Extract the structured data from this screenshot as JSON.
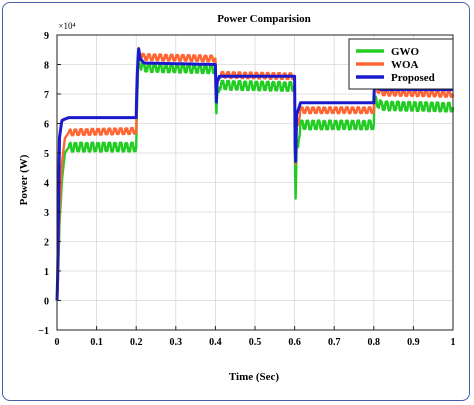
{
  "chart_data": {
    "type": "line",
    "title": "Power Comparision",
    "xlabel": "Time (Sec)",
    "ylabel": "Power (W)",
    "y_multiplier_label": "×10⁴",
    "xlim": [
      0,
      1
    ],
    "ylim": [
      -1,
      9
    ],
    "xticks": [
      0,
      0.1,
      0.2,
      0.3,
      0.4,
      0.5,
      0.6,
      0.7,
      0.8,
      0.9,
      1
    ],
    "xtick_labels": [
      "0",
      "0.1",
      "0.2",
      "0.3",
      "0.4",
      "0.5",
      "0.6",
      "0.7",
      "0.8",
      "0.9",
      "1"
    ],
    "yticks": [
      -1,
      0,
      1,
      2,
      3,
      4,
      5,
      6,
      7,
      8,
      9
    ],
    "ytick_labels": [
      "−1",
      "0",
      "1",
      "2",
      "3",
      "4",
      "5",
      "6",
      "7",
      "8",
      "9"
    ],
    "grid": true,
    "legend_position": "top-right",
    "series": [
      {
        "name": "GWO",
        "color": "#22cc22",
        "ripple": 0.3,
        "x": [
          0,
          0.002,
          0.006,
          0.012,
          0.02,
          0.03,
          0.2,
          0.202,
          0.206,
          0.21,
          0.22,
          0.4,
          0.401,
          0.402,
          0.404,
          0.41,
          0.6,
          0.601,
          0.602,
          0.605,
          0.615,
          0.8,
          0.802,
          0.806,
          0.82,
          1.0
        ],
        "y": [
          0,
          0.5,
          2.5,
          4.0,
          5.0,
          5.2,
          5.2,
          6.5,
          8.2,
          8.0,
          7.9,
          7.85,
          6.8,
          6.0,
          6.9,
          7.3,
          7.25,
          4.5,
          3.0,
          5.0,
          5.95,
          5.95,
          6.8,
          6.75,
          6.6,
          6.55
        ]
      },
      {
        "name": "WOA",
        "color": "#ff6633",
        "ripple": 0.2,
        "x": [
          0,
          0.002,
          0.006,
          0.012,
          0.02,
          0.03,
          0.2,
          0.202,
          0.206,
          0.21,
          0.22,
          0.4,
          0.401,
          0.402,
          0.404,
          0.41,
          0.6,
          0.601,
          0.602,
          0.605,
          0.615,
          0.8,
          0.802,
          0.806,
          0.82,
          1.0
        ],
        "y": [
          0,
          0.5,
          3.0,
          4.6,
          5.5,
          5.7,
          5.75,
          7.0,
          8.5,
          8.3,
          8.25,
          8.2,
          7.2,
          6.6,
          7.3,
          7.65,
          7.6,
          5.0,
          4.3,
          5.8,
          6.45,
          6.45,
          7.3,
          7.2,
          7.05,
          7.0
        ]
      },
      {
        "name": "Proposed",
        "color": "#1a1acc",
        "ripple": 0.0,
        "x": [
          0,
          0.002,
          0.006,
          0.012,
          0.02,
          0.03,
          0.2,
          0.202,
          0.206,
          0.21,
          0.22,
          0.4,
          0.401,
          0.402,
          0.404,
          0.41,
          0.6,
          0.601,
          0.602,
          0.605,
          0.615,
          0.8,
          0.802,
          0.806,
          0.82,
          1.0
        ],
        "y": [
          0,
          1.0,
          5.5,
          6.1,
          6.15,
          6.2,
          6.2,
          7.5,
          8.55,
          8.2,
          8.05,
          8.0,
          7.4,
          6.5,
          7.4,
          7.6,
          7.6,
          5.5,
          4.4,
          6.3,
          6.7,
          6.7,
          7.5,
          7.2,
          7.15,
          7.15
        ]
      }
    ]
  }
}
